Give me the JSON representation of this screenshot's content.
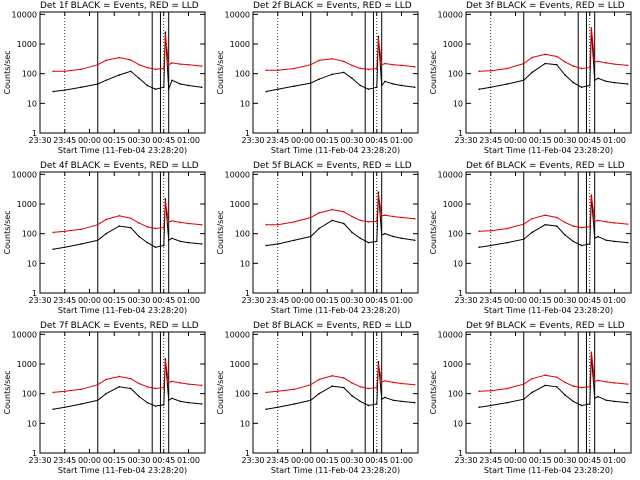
{
  "figure": {
    "x_tick_labels": [
      "23:30",
      "23:45",
      "00:00",
      "00:15",
      "00:30",
      "00:45",
      "01:00"
    ],
    "y_tick_labels": [
      "1",
      "10",
      "100",
      "1000",
      "10000"
    ],
    "ylabel": "Counts/sec",
    "xlabel": "Start Time (11-Feb-04 23:28:20)",
    "colors": {
      "events": "#000000",
      "lld": "#e00000"
    }
  },
  "chart_data": [
    {
      "type": "line",
      "title": "Det 1f BLACK = Events, RED = LLD",
      "xlabel": "Start Time (11-Feb-04 23:28:20)",
      "ylabel": "Counts/sec",
      "yscale": "log",
      "ylim": [
        1,
        12000
      ],
      "xlim": [
        "23:30",
        "01:10"
      ],
      "x_tick_labels": [
        "23:30",
        "23:45",
        "00:00",
        "00:15",
        "00:30",
        "00:45",
        "01:00"
      ],
      "x_minutes": [
        8,
        15,
        25,
        35,
        40,
        48,
        55,
        60,
        65,
        70,
        75,
        76,
        78,
        80,
        85,
        90,
        98
      ],
      "series": [
        {
          "color": "#000000",
          "values": [
            25,
            28,
            35,
            45,
            60,
            90,
            120,
            70,
            40,
            30,
            35,
            2500,
            30,
            60,
            45,
            40,
            35
          ]
        },
        {
          "color": "#e00000",
          "values": [
            120,
            120,
            140,
            200,
            280,
            350,
            290,
            200,
            160,
            140,
            150,
            2000,
            200,
            230,
            210,
            200,
            180
          ]
        }
      ],
      "vlines_minutes": [
        35,
        68,
        73,
        78
      ]
    },
    {
      "type": "line",
      "title": "Det 2f BLACK = Events, RED = LLD",
      "xlabel": "Start Time (11-Feb-04 23:28:20)",
      "ylabel": "Counts/sec",
      "yscale": "log",
      "ylim": [
        1,
        12000
      ],
      "xlim": [
        "23:30",
        "01:10"
      ],
      "x_tick_labels": [
        "23:30",
        "23:45",
        "00:00",
        "00:15",
        "00:30",
        "00:45",
        "01:00"
      ],
      "x_minutes": [
        8,
        15,
        25,
        35,
        40,
        48,
        55,
        60,
        65,
        70,
        75,
        76,
        78,
        80,
        85,
        90,
        98
      ],
      "series": [
        {
          "color": "#000000",
          "values": [
            25,
            30,
            38,
            48,
            65,
            95,
            110,
            70,
            40,
            30,
            35,
            1800,
            40,
            55,
            45,
            40,
            35
          ]
        },
        {
          "color": "#e00000",
          "values": [
            130,
            130,
            150,
            200,
            280,
            320,
            260,
            190,
            150,
            140,
            150,
            1500,
            200,
            220,
            200,
            190,
            170
          ]
        }
      ],
      "vlines_minutes": [
        35,
        68,
        73,
        78
      ]
    },
    {
      "type": "line",
      "title": "Det 3f BLACK = Events, RED = LLD",
      "xlabel": "Start Time (11-Feb-04 23:28:20)",
      "ylabel": "Counts/sec",
      "yscale": "log",
      "ylim": [
        1,
        12000
      ],
      "xlim": [
        "23:30",
        "01:10"
      ],
      "x_tick_labels": [
        "23:30",
        "23:45",
        "00:00",
        "00:15",
        "00:30",
        "00:45",
        "01:00"
      ],
      "x_minutes": [
        8,
        15,
        25,
        35,
        40,
        48,
        55,
        60,
        65,
        70,
        75,
        76,
        78,
        80,
        85,
        90,
        98
      ],
      "series": [
        {
          "color": "#000000",
          "values": [
            30,
            35,
            45,
            60,
            110,
            220,
            200,
            90,
            50,
            35,
            40,
            3000,
            60,
            70,
            55,
            50,
            45
          ]
        },
        {
          "color": "#e00000",
          "values": [
            120,
            125,
            150,
            220,
            350,
            450,
            380,
            250,
            180,
            150,
            160,
            3500,
            250,
            260,
            230,
            210,
            190
          ]
        }
      ],
      "vlines_minutes": [
        35,
        68,
        73,
        78
      ]
    },
    {
      "type": "line",
      "title": "Det 4f BLACK = Events, RED = LLD",
      "xlabel": "Start Time (11-Feb-04 23:28:20)",
      "ylabel": "Counts/sec",
      "yscale": "log",
      "ylim": [
        1,
        12000
      ],
      "xlim": [
        "23:30",
        "01:10"
      ],
      "x_tick_labels": [
        "23:30",
        "23:45",
        "00:00",
        "00:15",
        "00:30",
        "00:45",
        "01:00"
      ],
      "x_minutes": [
        8,
        15,
        25,
        35,
        40,
        48,
        55,
        60,
        65,
        70,
        75,
        76,
        78,
        80,
        85,
        90,
        98
      ],
      "series": [
        {
          "color": "#000000",
          "values": [
            30,
            35,
            45,
            60,
            100,
            180,
            160,
            80,
            50,
            35,
            40,
            1500,
            60,
            70,
            55,
            50,
            45
          ]
        },
        {
          "color": "#e00000",
          "values": [
            110,
            120,
            140,
            200,
            300,
            400,
            330,
            230,
            170,
            150,
            160,
            1200,
            250,
            270,
            240,
            220,
            200
          ]
        }
      ],
      "vlines_minutes": [
        35,
        68,
        73,
        78
      ]
    },
    {
      "type": "line",
      "title": "Det 5f BLACK = Events, RED = LLD",
      "xlabel": "Start Time (11-Feb-04 23:28:20)",
      "ylabel": "Counts/sec",
      "yscale": "log",
      "ylim": [
        1,
        12000
      ],
      "xlim": [
        "23:30",
        "01:10"
      ],
      "x_tick_labels": [
        "23:30",
        "23:45",
        "00:00",
        "00:15",
        "00:30",
        "00:45",
        "01:00"
      ],
      "x_minutes": [
        8,
        15,
        25,
        35,
        40,
        48,
        55,
        60,
        65,
        70,
        75,
        76,
        78,
        80,
        85,
        90,
        98
      ],
      "series": [
        {
          "color": "#000000",
          "values": [
            40,
            45,
            60,
            80,
            150,
            280,
            220,
            110,
            70,
            50,
            55,
            2500,
            90,
            100,
            80,
            70,
            60
          ]
        },
        {
          "color": "#e00000",
          "values": [
            200,
            200,
            250,
            350,
            500,
            650,
            550,
            380,
            280,
            250,
            260,
            2200,
            400,
            420,
            380,
            350,
            320
          ]
        }
      ],
      "vlines_minutes": [
        35,
        68,
        73,
        78
      ]
    },
    {
      "type": "line",
      "title": "Det 6f BLACK = Events, RED = LLD",
      "xlabel": "Start Time (11-Feb-04 23:28:20)",
      "ylabel": "Counts/sec",
      "yscale": "log",
      "ylim": [
        1,
        12000
      ],
      "xlim": [
        "23:30",
        "01:10"
      ],
      "x_tick_labels": [
        "23:30",
        "23:45",
        "00:00",
        "00:15",
        "00:30",
        "00:45",
        "01:00"
      ],
      "x_minutes": [
        8,
        15,
        25,
        35,
        40,
        48,
        55,
        60,
        65,
        70,
        75,
        76,
        78,
        80,
        85,
        90,
        98
      ],
      "series": [
        {
          "color": "#000000",
          "values": [
            35,
            40,
            50,
            65,
            110,
            200,
            180,
            90,
            55,
            40,
            45,
            1800,
            70,
            80,
            60,
            55,
            50
          ]
        },
        {
          "color": "#e00000",
          "values": [
            120,
            125,
            150,
            210,
            320,
            420,
            350,
            240,
            180,
            160,
            170,
            2000,
            260,
            280,
            250,
            230,
            210
          ]
        }
      ],
      "vlines_minutes": [
        35,
        68,
        73,
        78
      ]
    },
    {
      "type": "line",
      "title": "Det 7f BLACK = Events, RED = LLD",
      "xlabel": "Start Time (11-Feb-04 23:28:20)",
      "ylabel": "Counts/sec",
      "yscale": "log",
      "ylim": [
        1,
        12000
      ],
      "xlim": [
        "23:30",
        "01:10"
      ],
      "x_tick_labels": [
        "23:30",
        "23:45",
        "00:00",
        "00:15",
        "00:30",
        "00:45",
        "01:00"
      ],
      "x_minutes": [
        8,
        15,
        25,
        35,
        40,
        48,
        55,
        60,
        65,
        70,
        75,
        76,
        78,
        80,
        85,
        90,
        98
      ],
      "series": [
        {
          "color": "#000000",
          "values": [
            30,
            35,
            45,
            60,
            100,
            170,
            150,
            80,
            50,
            38,
            42,
            1500,
            60,
            70,
            55,
            50,
            45
          ]
        },
        {
          "color": "#e00000",
          "values": [
            110,
            120,
            140,
            200,
            300,
            380,
            320,
            220,
            170,
            150,
            160,
            1300,
            240,
            260,
            230,
            210,
            190
          ]
        }
      ],
      "vlines_minutes": [
        35,
        68,
        73,
        78
      ]
    },
    {
      "type": "line",
      "title": "Det 8f BLACK = Events, RED = LLD",
      "xlabel": "Start Time (11-Feb-04 23:28:20)",
      "ylabel": "Counts/sec",
      "yscale": "log",
      "ylim": [
        1,
        12000
      ],
      "xlim": [
        "23:30",
        "01:10"
      ],
      "x_tick_labels": [
        "23:30",
        "23:45",
        "00:00",
        "00:15",
        "00:30",
        "00:45",
        "01:00"
      ],
      "x_minutes": [
        8,
        15,
        25,
        35,
        40,
        48,
        55,
        60,
        65,
        70,
        75,
        76,
        78,
        80,
        85,
        90,
        98
      ],
      "series": [
        {
          "color": "#000000",
          "values": [
            30,
            35,
            45,
            60,
            100,
            180,
            160,
            85,
            55,
            40,
            45,
            1200,
            65,
            75,
            60,
            55,
            50
          ]
        },
        {
          "color": "#e00000",
          "values": [
            110,
            120,
            140,
            200,
            300,
            400,
            340,
            230,
            170,
            150,
            160,
            1000,
            250,
            270,
            240,
            220,
            200
          ]
        }
      ],
      "vlines_minutes": [
        35,
        68,
        73,
        78
      ]
    },
    {
      "type": "line",
      "title": "Det 9f BLACK = Events, RED = LLD",
      "xlabel": "Start Time (11-Feb-04 23:28:20)",
      "ylabel": "Counts/sec",
      "yscale": "log",
      "ylim": [
        1,
        12000
      ],
      "xlim": [
        "23:30",
        "01:10"
      ],
      "x_tick_labels": [
        "23:30",
        "23:45",
        "00:00",
        "00:15",
        "00:30",
        "00:45",
        "01:00"
      ],
      "x_minutes": [
        8,
        15,
        25,
        35,
        40,
        48,
        55,
        60,
        65,
        70,
        75,
        76,
        78,
        80,
        85,
        90,
        98
      ],
      "series": [
        {
          "color": "#000000",
          "values": [
            35,
            40,
            50,
            65,
            110,
            190,
            170,
            90,
            55,
            40,
            45,
            2000,
            70,
            80,
            60,
            55,
            50
          ]
        },
        {
          "color": "#e00000",
          "values": [
            120,
            125,
            150,
            210,
            320,
            420,
            360,
            240,
            180,
            160,
            170,
            2500,
            260,
            280,
            250,
            230,
            210
          ]
        }
      ],
      "vlines_minutes": [
        35,
        68,
        73,
        78
      ]
    }
  ]
}
